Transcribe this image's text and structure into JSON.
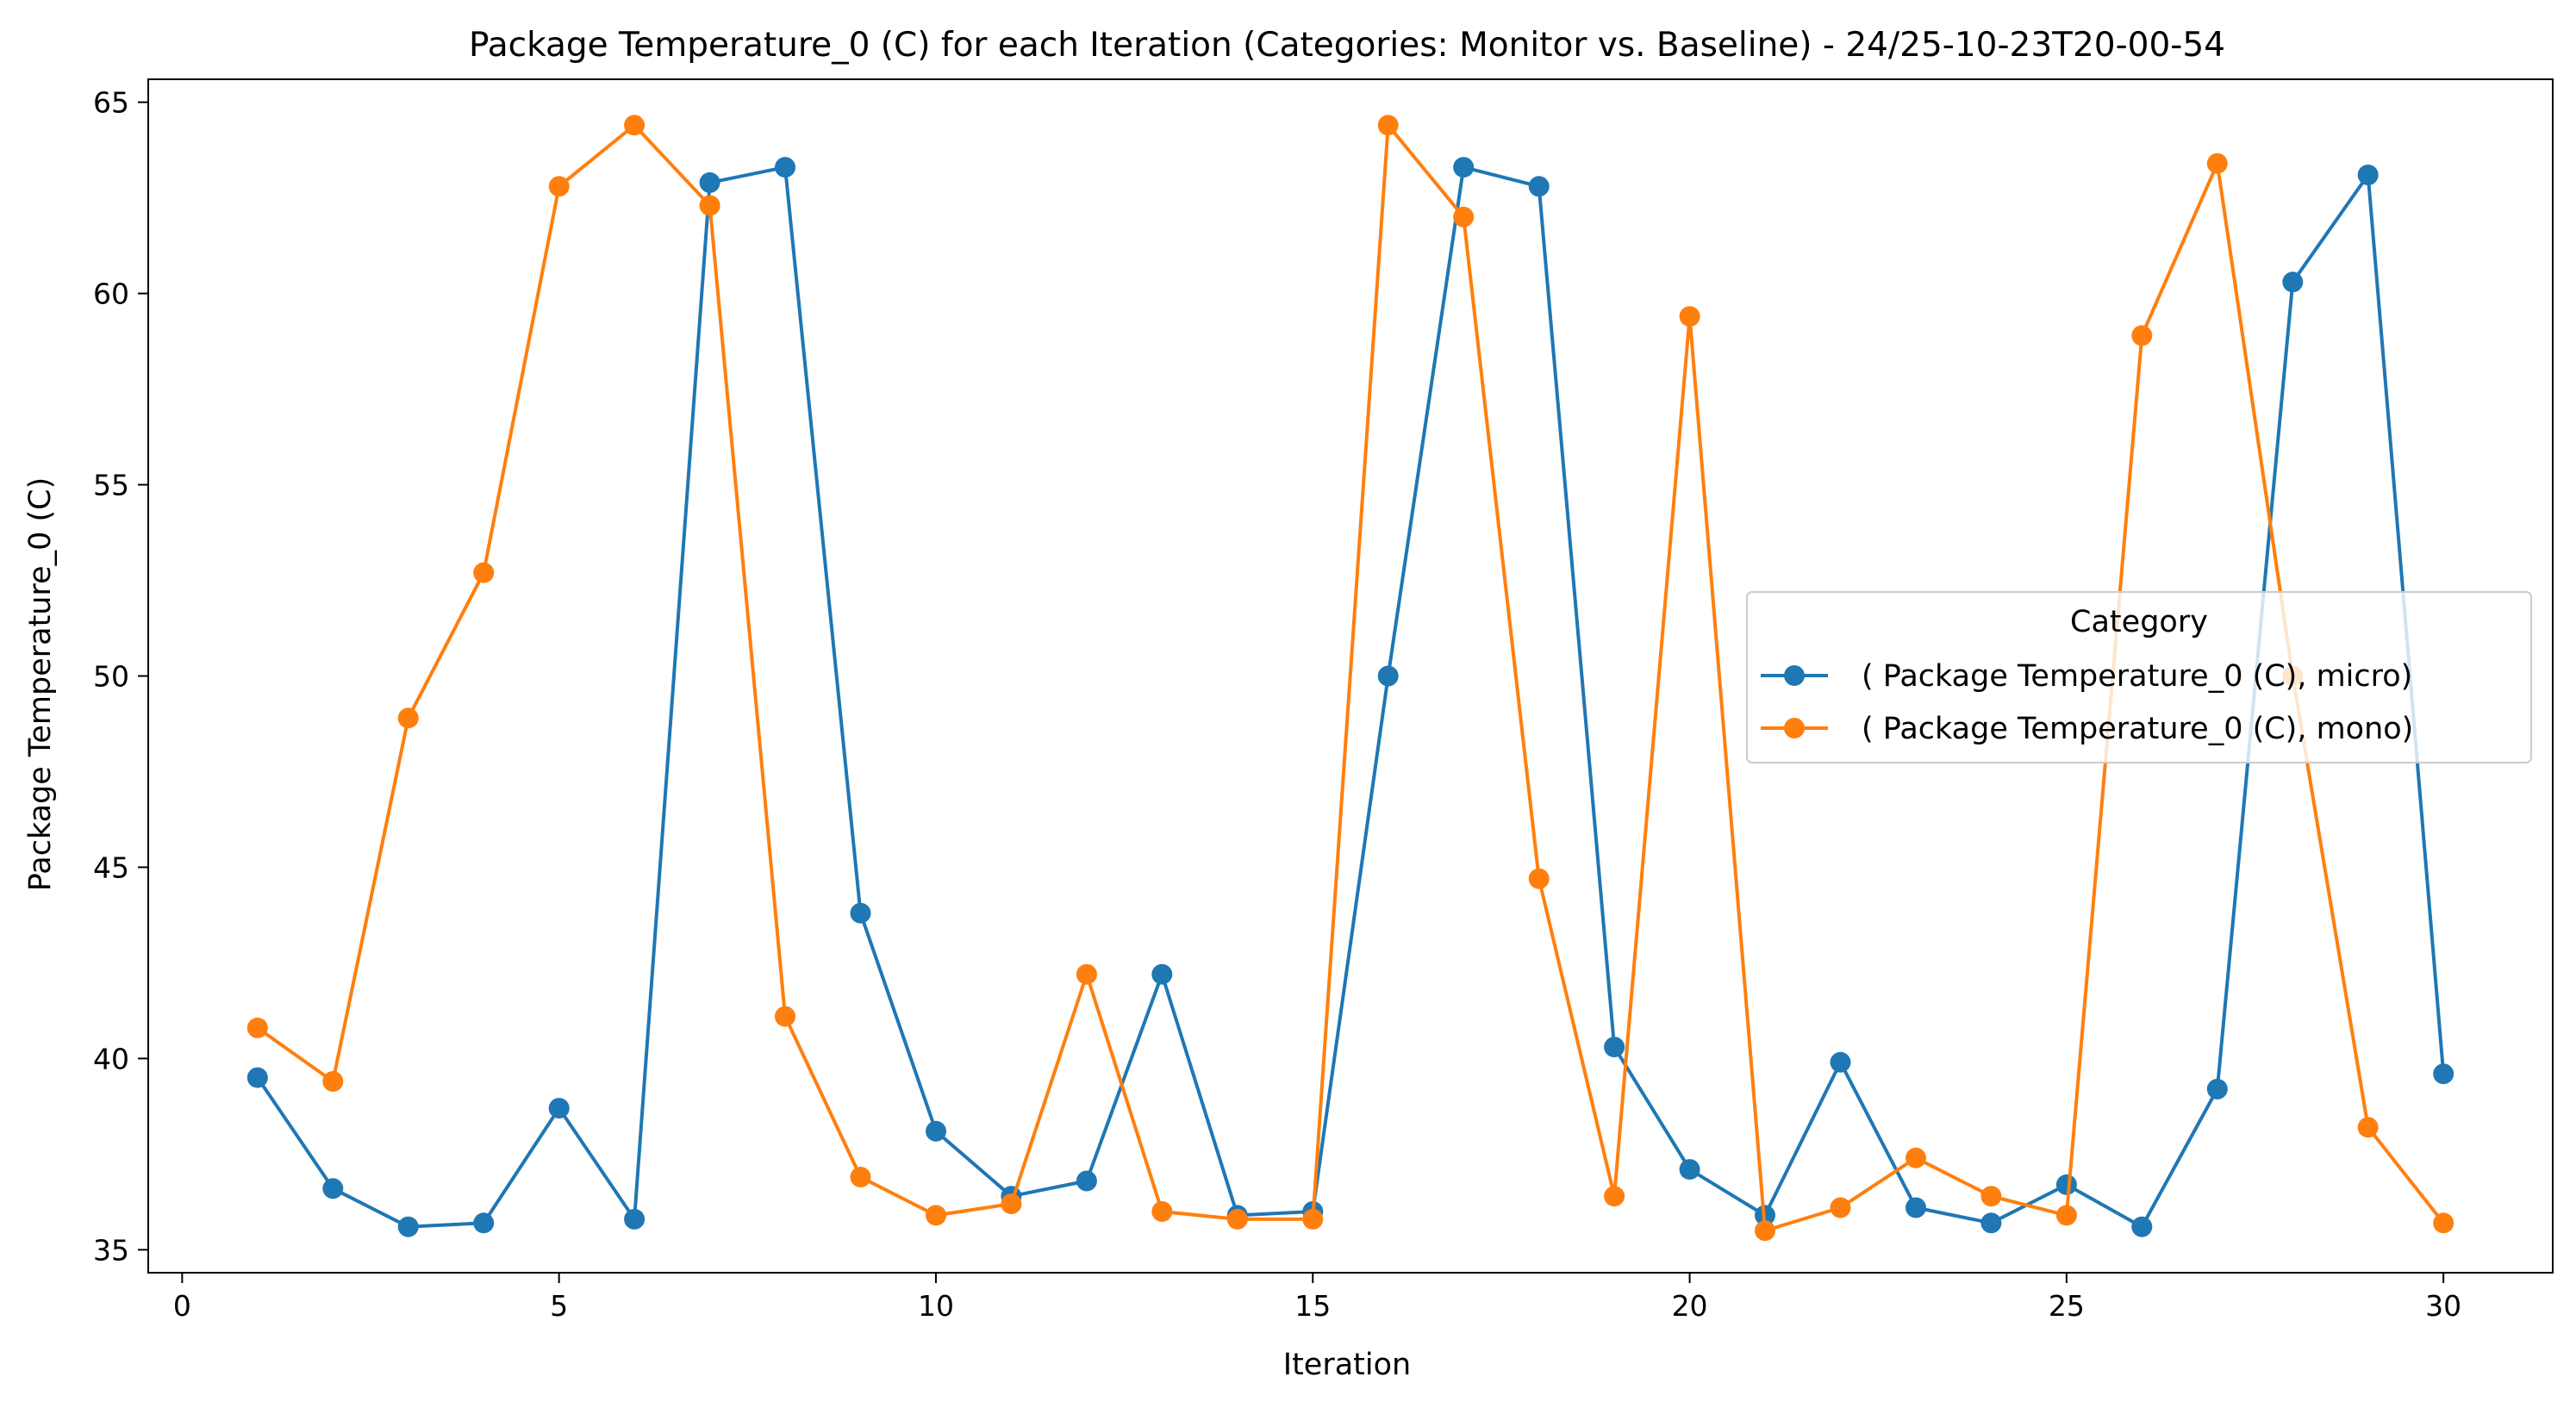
{
  "chart_data": {
    "type": "line",
    "title": "Package Temperature_0 (C) for each Iteration (Categories: Monitor vs. Baseline) - 24/25-10-23T20-00-54",
    "xlabel": "Iteration",
    "ylabel": "Package Temperature_0 (C)",
    "xlim": [
      -0.45,
      31.45
    ],
    "ylim": [
      34.4,
      65.6
    ],
    "xticks": [
      0,
      5,
      10,
      15,
      20,
      25,
      30
    ],
    "yticks": [
      35,
      40,
      45,
      50,
      55,
      60,
      65
    ],
    "grid": false,
    "legend": {
      "title": "Category",
      "placement": "center-right"
    },
    "x": [
      1,
      2,
      3,
      4,
      5,
      6,
      7,
      8,
      9,
      10,
      11,
      12,
      13,
      14,
      15,
      16,
      17,
      18,
      19,
      20,
      21,
      22,
      23,
      24,
      25,
      26,
      27,
      28,
      29,
      30
    ],
    "series": [
      {
        "name": "( Package Temperature_0 (C), micro)",
        "color": "#1f77b4",
        "values": [
          39.5,
          36.6,
          35.6,
          35.7,
          38.7,
          35.8,
          62.9,
          63.3,
          43.8,
          38.1,
          36.4,
          36.8,
          42.2,
          35.9,
          36.0,
          50.0,
          63.3,
          62.8,
          40.3,
          37.1,
          35.9,
          39.9,
          36.1,
          35.7,
          36.7,
          35.6,
          39.2,
          60.3,
          63.1,
          39.6
        ]
      },
      {
        "name": "( Package Temperature_0 (C), mono)",
        "color": "#ff7f0e",
        "values": [
          40.8,
          39.4,
          48.9,
          52.7,
          62.8,
          64.4,
          62.3,
          41.1,
          36.9,
          35.9,
          36.2,
          42.2,
          36.0,
          35.8,
          35.8,
          64.4,
          62.0,
          44.7,
          36.4,
          59.4,
          35.5,
          36.1,
          37.4,
          36.4,
          35.9,
          58.9,
          63.4,
          50.0,
          38.2,
          35.7
        ]
      }
    ]
  }
}
